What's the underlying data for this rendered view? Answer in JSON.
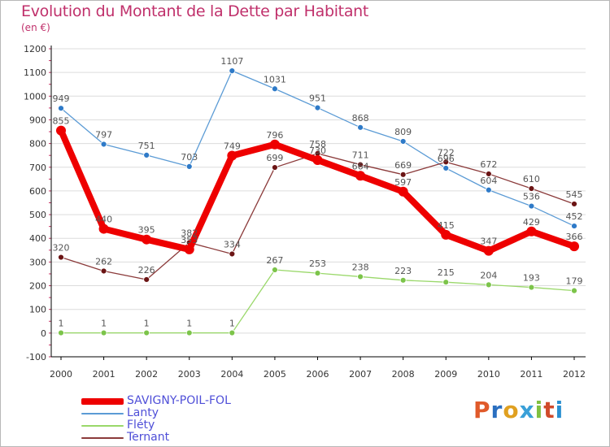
{
  "header": {
    "title": "Evolution du Montant de la Dette par Habitant",
    "unit": "(en €)"
  },
  "logo": {
    "text": "Proxiti",
    "colors": [
      "#e05a2a",
      "#2a6fc0",
      "#e0a020",
      "#3aa0d8",
      "#80c040",
      "#d04a2a",
      "#2a8fd0"
    ]
  },
  "colors": {
    "title": "#c0306b",
    "legend_text": "#4f4fd8",
    "grid": "#dcdcdc",
    "axis": "#000000",
    "tick_text": "#333333",
    "value_label": "#555555"
  },
  "chart_data": {
    "type": "line",
    "x": [
      2000,
      2001,
      2002,
      2003,
      2004,
      2005,
      2006,
      2007,
      2008,
      2009,
      2010,
      2011,
      2012
    ],
    "ylim": [
      -100,
      1200
    ],
    "yticks": [
      -100,
      0,
      100,
      200,
      300,
      400,
      500,
      600,
      700,
      800,
      900,
      1000,
      1100,
      1200
    ],
    "grid": "horizontal",
    "legend_position": "bottom-left",
    "series": [
      {
        "name": "Lanty",
        "color": "#5b9bd5",
        "marker": "#2e7ac8",
        "values": [
          949,
          797,
          751,
          703,
          1107,
          1031,
          951,
          868,
          809,
          696,
          604,
          536,
          452
        ]
      },
      {
        "name": "Fléty",
        "color": "#9ad86a",
        "marker": "#7cc44a",
        "values": [
          1,
          1,
          1,
          1,
          1,
          267,
          253,
          238,
          223,
          215,
          204,
          193,
          179
        ]
      },
      {
        "name": "Ternant",
        "color": "#8b3a3a",
        "marker": "#6b1414",
        "values": [
          320,
          262,
          226,
          382,
          334,
          699,
          758,
          711,
          669,
          722,
          672,
          610,
          545
        ]
      },
      {
        "name": "SAVIGNY-POIL-FOL",
        "color": "#ee0000",
        "marker": "#ee0000",
        "values": [
          855,
          440,
          395,
          353,
          749,
          796,
          730,
          664,
          597,
          415,
          347,
          429,
          366
        ]
      }
    ],
    "legend_order": [
      "SAVIGNY-POIL-FOL",
      "Lanty",
      "Fléty",
      "Ternant"
    ]
  }
}
